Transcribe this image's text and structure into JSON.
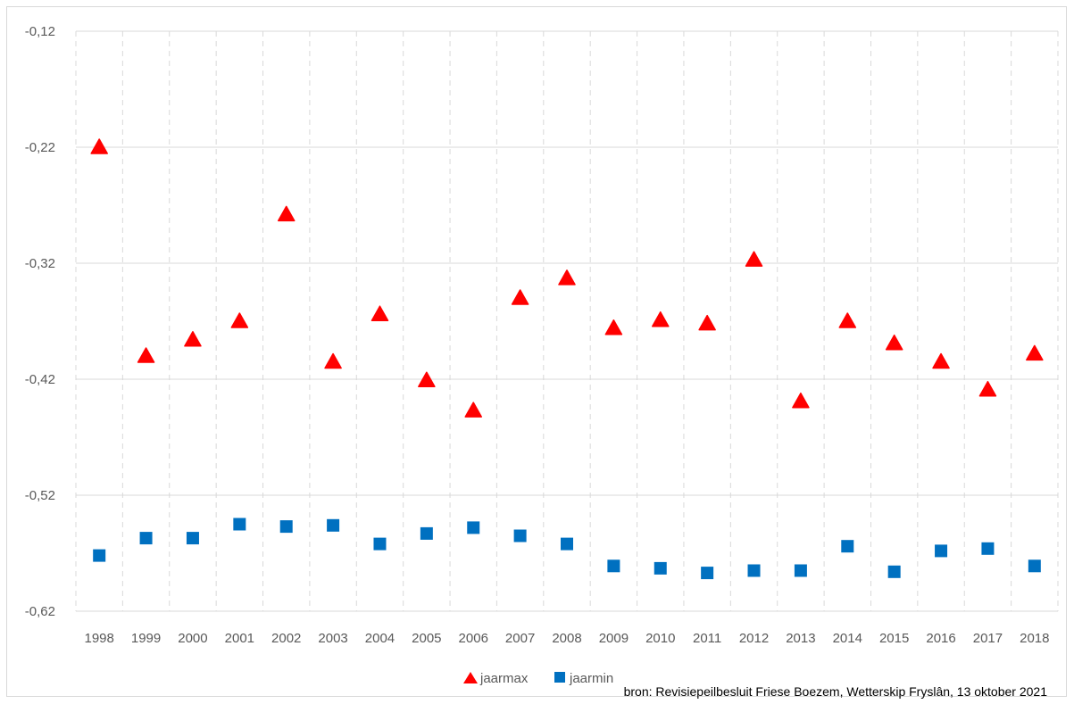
{
  "chart_data": {
    "type": "scatter",
    "categories": [
      "1998",
      "1999",
      "2000",
      "2001",
      "2002",
      "2003",
      "2004",
      "2005",
      "2006",
      "2007",
      "2008",
      "2009",
      "2010",
      "2011",
      "2012",
      "2013",
      "2014",
      "2015",
      "2016",
      "2017",
      "2018"
    ],
    "series": [
      {
        "name": "jaarmax",
        "marker": "triangle",
        "color": "#ff0000",
        "values": [
          -0.22,
          -0.4,
          -0.386,
          -0.37,
          -0.278,
          -0.405,
          -0.364,
          -0.421,
          -0.447,
          -0.35,
          -0.333,
          -0.376,
          -0.369,
          -0.372,
          -0.317,
          -0.439,
          -0.37,
          -0.389,
          -0.405,
          -0.429,
          -0.398
        ]
      },
      {
        "name": "jaarmin",
        "marker": "square",
        "color": "#0070c0",
        "values": [
          -0.572,
          -0.557,
          -0.557,
          -0.545,
          -0.547,
          -0.546,
          -0.562,
          -0.553,
          -0.548,
          -0.555,
          -0.562,
          -0.581,
          -0.583,
          -0.587,
          -0.585,
          -0.585,
          -0.564,
          -0.586,
          -0.568,
          -0.566,
          -0.581
        ]
      }
    ],
    "y_ticks": [
      "-0,12",
      "-0,22",
      "-0,32",
      "-0,42",
      "-0,52",
      "-0,62"
    ],
    "ylim": [
      -0.62,
      -0.12
    ],
    "grid": true,
    "legend_position": "bottom"
  },
  "source_text": "bron: Revisiepeilbesluit Friese Boezem, Wetterskip Fryslân, 13 oktober 2021"
}
